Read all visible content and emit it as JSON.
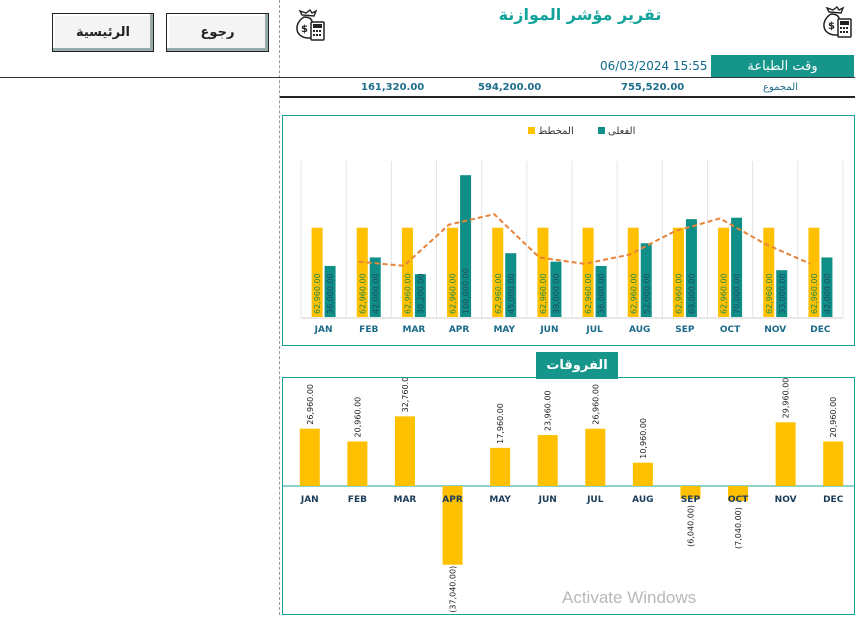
{
  "header": {
    "title": "تقرير مؤشر الموازنة",
    "home_button": "الرئيسية",
    "back_button": "رجوع",
    "print_time_label": "وقت الطباعة",
    "print_time_value": "06/03/2024 15:55"
  },
  "totals": {
    "label": "المجموع",
    "planned_total": "755,520.00",
    "actual_total": "594,200.00",
    "difference_total": "161,320.00"
  },
  "icons": {
    "money_calc_right": "money-bag-calculator-icon",
    "money_calc_left": "money-bag-calculator-icon"
  },
  "watermark": "Activate Windows",
  "colors": {
    "teal": "#16958b",
    "gold": "#ffc000",
    "dark_teal": "#0f8f87",
    "trend": "#e8833a"
  },
  "chart_data": [
    {
      "type": "bar",
      "categories": [
        "JAN",
        "FEB",
        "MAR",
        "APR",
        "MAY",
        "JUN",
        "JUL",
        "AUG",
        "SEP",
        "OCT",
        "NOV",
        "DEC"
      ],
      "series": [
        {
          "name": "المخطط",
          "values": [
            62960,
            62960,
            62960,
            62960,
            62960,
            62960,
            62960,
            62960,
            62960,
            62960,
            62960,
            62960
          ],
          "labels": [
            "62,960.00",
            "62,960.00",
            "62,960.00",
            "62,960.00",
            "62,960.00",
            "62,960.00",
            "62,960.00",
            "62,960.00",
            "62,960.00",
            "62,960.00",
            "62,960.00",
            "62,960.00"
          ]
        },
        {
          "name": "الفعلى",
          "values": [
            36000,
            42000,
            30200,
            100000,
            45000,
            39000,
            36000,
            52000,
            69000,
            70000,
            33000,
            42000
          ],
          "labels": [
            "36,000.00",
            "42,000.00",
            "30,200.00",
            "100,000.00",
            "45,000.00",
            "39,000.00",
            "36,000.00",
            "52,000.00",
            "69,000.00",
            "70,000.00",
            "33,000.00",
            "42,000.00"
          ]
        }
      ],
      "trendline": true,
      "legend": "top",
      "ylim": [
        0,
        110000
      ]
    },
    {
      "type": "bar",
      "title": "الفروقات",
      "categories": [
        "JAN",
        "FEB",
        "MAR",
        "APR",
        "MAY",
        "JUN",
        "JUL",
        "AUG",
        "SEP",
        "OCT",
        "NOV",
        "DEC"
      ],
      "values": [
        26960,
        20960,
        32760,
        -37040,
        17960,
        23960,
        26960,
        10960,
        -6040,
        -7040,
        29960,
        20960
      ],
      "labels": [
        "26,960.00",
        "20,960.00",
        "32,760.00",
        "(37,040.00)",
        "17,960.00",
        "23,960.00",
        "26,960.00",
        "10,960.00",
        "(6,040.00)",
        "(7,040.00)",
        "29,960.00",
        "20,960.00"
      ],
      "ylim": [
        -40000,
        40000
      ]
    }
  ]
}
